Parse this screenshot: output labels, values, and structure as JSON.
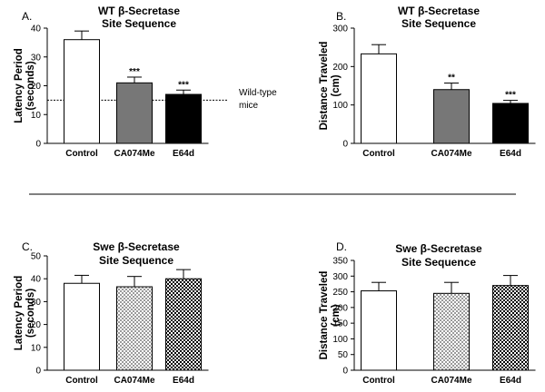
{
  "separator": "horizontal rule between the two rows of panels",
  "patterns": {
    "CA074Me_bottom": "light-gray checkerboard",
    "E64d_bottom": "dark checkerboard"
  },
  "chart_data": [
    {
      "panel_label": "A.",
      "type": "bar",
      "title_line1": "WT β-Secretase",
      "title_line2": "Site Sequence",
      "ylabel_line1": "Latency Period",
      "ylabel_line2": "(seconds)",
      "categories": [
        "Control",
        "CA074Me",
        "E64d"
      ],
      "values": [
        36,
        21,
        17
      ],
      "errors": [
        3,
        2,
        1.5
      ],
      "significance": [
        "",
        "***",
        "***"
      ],
      "fills": [
        "#ffffff",
        "#777777",
        "#000000"
      ],
      "ylim": [
        0,
        40
      ],
      "yticks": [
        0,
        10,
        20,
        30,
        40
      ],
      "reference_line": {
        "value": 15,
        "label_line1": "Wild-type",
        "label_line2": "mice"
      }
    },
    {
      "panel_label": "B.",
      "type": "bar",
      "title_line1": "WT β-Secretase",
      "title_line2": "Site Sequence",
      "ylabel_line1": "Distance Traveled",
      "ylabel_line2": "(cm)",
      "categories": [
        "Control",
        "CA074Me",
        "E64d"
      ],
      "values": [
        233,
        140,
        104
      ],
      "errors": [
        24,
        17,
        8
      ],
      "significance": [
        "",
        "**",
        "***"
      ],
      "fills": [
        "#ffffff",
        "#777777",
        "#000000"
      ],
      "ylim": [
        0,
        300
      ],
      "yticks": [
        0,
        100,
        200,
        300
      ]
    },
    {
      "panel_label": "C.",
      "type": "bar",
      "title_line1": "Swe β-Secretase",
      "title_line2": "Site Sequence",
      "ylabel_line1": "Latency Period",
      "ylabel_line2": "(seconds)",
      "categories": [
        "Control",
        "CA074Me",
        "E64d"
      ],
      "values": [
        38,
        36.5,
        40
      ],
      "errors": [
        3.5,
        4.5,
        4
      ],
      "significance": [
        "",
        "",
        ""
      ],
      "fills": [
        "#ffffff",
        "pattern-light",
        "pattern-dark"
      ],
      "ylim": [
        0,
        50
      ],
      "yticks": [
        0,
        10,
        20,
        30,
        40,
        50
      ]
    },
    {
      "panel_label": "D.",
      "type": "bar",
      "title_line1": "Swe β-Secretase",
      "title_line2": "Site Sequence",
      "ylabel_line1": "Distance Traveled",
      "ylabel_line2": "(cm)",
      "categories": [
        "Control",
        "CA074Me",
        "E64d"
      ],
      "values": [
        253,
        245,
        270
      ],
      "errors": [
        27,
        35,
        32
      ],
      "significance": [
        "",
        "",
        ""
      ],
      "fills": [
        "#ffffff",
        "pattern-light",
        "pattern-dark"
      ],
      "ylim": [
        0,
        350
      ],
      "yticks": [
        0,
        50,
        100,
        150,
        200,
        250,
        300,
        350
      ]
    }
  ]
}
